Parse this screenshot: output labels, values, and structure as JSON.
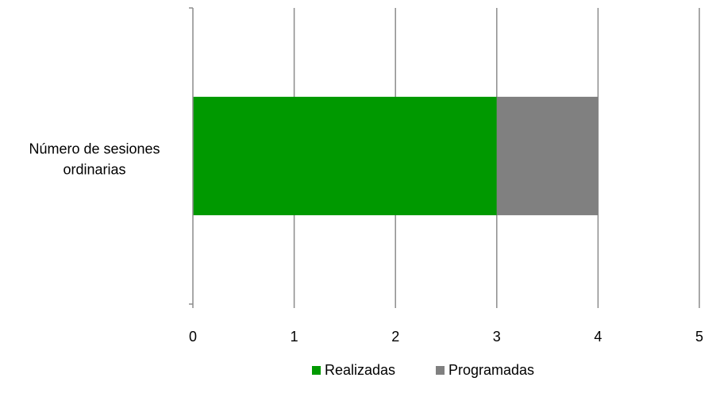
{
  "chart_data": {
    "type": "bar",
    "orientation": "horizontal",
    "stacked": true,
    "categories": [
      "Número de sesiones ordinarias"
    ],
    "series": [
      {
        "name": "Realizadas",
        "values": [
          3
        ],
        "color": "#009900"
      },
      {
        "name": "Programadas",
        "values": [
          1
        ],
        "color": "#808080"
      }
    ],
    "xlim": [
      0,
      5
    ],
    "xticks": [
      "0",
      "1",
      "2",
      "3",
      "4",
      "5"
    ],
    "grid": "vertical",
    "legend": "bottom",
    "title": "",
    "xlabel": "",
    "ylabel": ""
  }
}
